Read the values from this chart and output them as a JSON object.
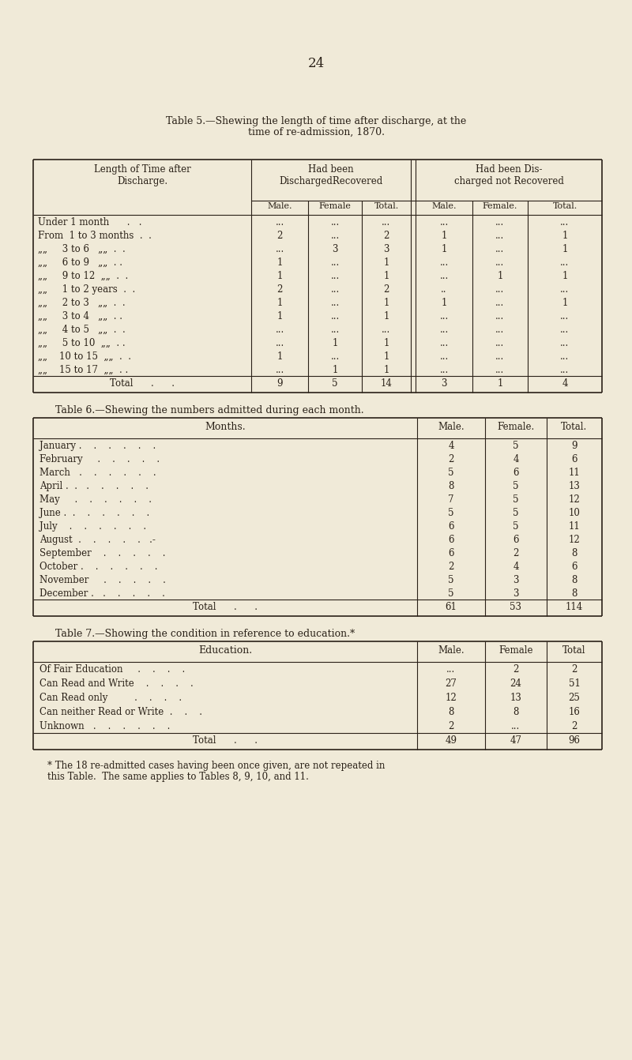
{
  "page_number": "24",
  "bg_color": "#f0ead8",
  "text_color": "#2a2118",
  "table5_title1": "Table 5.—Shewing the length of time after discharge, at the",
  "table5_title2": "time of re-admission, 1870.",
  "table5_subheaders": [
    "Male.",
    "Female",
    "Total.",
    "Male.",
    "Female.",
    "Total."
  ],
  "table5_rows": [
    [
      "Under 1 month      .   .",
      "...",
      "...",
      "...",
      "...",
      "...",
      "..."
    ],
    [
      "From  1 to 3 months  .  .",
      "2",
      "...",
      "2",
      "1",
      "...",
      "1"
    ],
    [
      "„„     3 to 6   „„  .  .",
      "...",
      "3",
      "3",
      "1",
      "...",
      "1"
    ],
    [
      "„„     6 to 9   „„  . .",
      "1",
      "...",
      "1",
      "...",
      "...",
      "..."
    ],
    [
      "„„     9 to 12  „„  .  .",
      "1",
      "...",
      "1",
      "...",
      "1",
      "1"
    ],
    [
      "„„     1 to 2 years  .  .",
      "2",
      "...",
      "2",
      "..",
      "...",
      "..."
    ],
    [
      "„„     2 to 3   „„  .  .",
      "1",
      "...",
      "1",
      "1",
      "...",
      "1"
    ],
    [
      "„„     3 to 4   „„  . .",
      "1",
      "...",
      "1",
      "...",
      "...",
      "..."
    ],
    [
      "„„     4 to 5   „„  .  .",
      "...",
      "...",
      "...",
      "...",
      "...",
      "..."
    ],
    [
      "„„     5 to 10  „„  . .",
      "...",
      "1",
      "1",
      "...",
      "...",
      "..."
    ],
    [
      "„„    10 to 15  „„  .  .",
      "1",
      "...",
      "1",
      "...",
      "...",
      "..."
    ],
    [
      "„„    15 to 17  „„  . .",
      "...",
      "1",
      "1",
      "...",
      "...",
      "..."
    ]
  ],
  "table5_total": [
    "Total      .      .",
    "9",
    "5",
    "14",
    "3",
    "1",
    "4"
  ],
  "table6_title": "Table 6.—Shewing the numbers admitted during each month.",
  "table6_subheaders": [
    "Male.",
    "Female.",
    "Total."
  ],
  "table6_rows": [
    [
      "January .    .    .    .    .    .",
      "4",
      "5",
      "9"
    ],
    [
      "February     .    .    .    .    .",
      "2",
      "4",
      "6"
    ],
    [
      "March   .    .    .    .    .    .",
      "5",
      "6",
      "11"
    ],
    [
      "April .  .   .    .    .    .    .",
      "8",
      "5",
      "13"
    ],
    [
      "May     .    .    .    .    .    .",
      "7",
      "5",
      "12"
    ],
    [
      "June .  .    .    .    .    .    .",
      "5",
      "5",
      "10"
    ],
    [
      "July    .    .    .    .    .    .",
      "6",
      "5",
      "11"
    ],
    [
      "August  .    .    .    .    .   .-",
      "6",
      "6",
      "12"
    ],
    [
      "September    .    .    .    .    .",
      "6",
      "2",
      "8"
    ],
    [
      "October .    .    .    .    .    .",
      "2",
      "4",
      "6"
    ],
    [
      "November     .    .    .    .    .",
      "5",
      "3",
      "8"
    ],
    [
      "December .   .    .    .    .    .",
      "5",
      "3",
      "8"
    ]
  ],
  "table6_total": [
    "Total      .      .",
    "61",
    "53",
    "114"
  ],
  "table7_title": "Table 7.—Showing the condition in reference to education.*",
  "table7_subheaders": [
    "Male.",
    "Female",
    "Total"
  ],
  "table7_rows": [
    [
      "Of Fair Education     .    .    .    .",
      "...",
      "2",
      "2"
    ],
    [
      "Can Read and Write    .    .    .    .",
      "27",
      "24",
      "51"
    ],
    [
      "Can Read only         .    .    .    .",
      "12",
      "13",
      "25"
    ],
    [
      "Can neither Read or Write  .    .    .",
      "8",
      "8",
      "16"
    ],
    [
      "Unknown   .    .    .    .    .    .",
      "2",
      "...",
      "2"
    ]
  ],
  "table7_total": [
    "Total      .      .",
    "49",
    "47",
    "96"
  ],
  "table7_footnote1": "* The 18 re-admitted cases having been once given, are not repeated in",
  "table7_footnote2": "this Table.  The same applies to Tables 8, 9, 10, and 11."
}
